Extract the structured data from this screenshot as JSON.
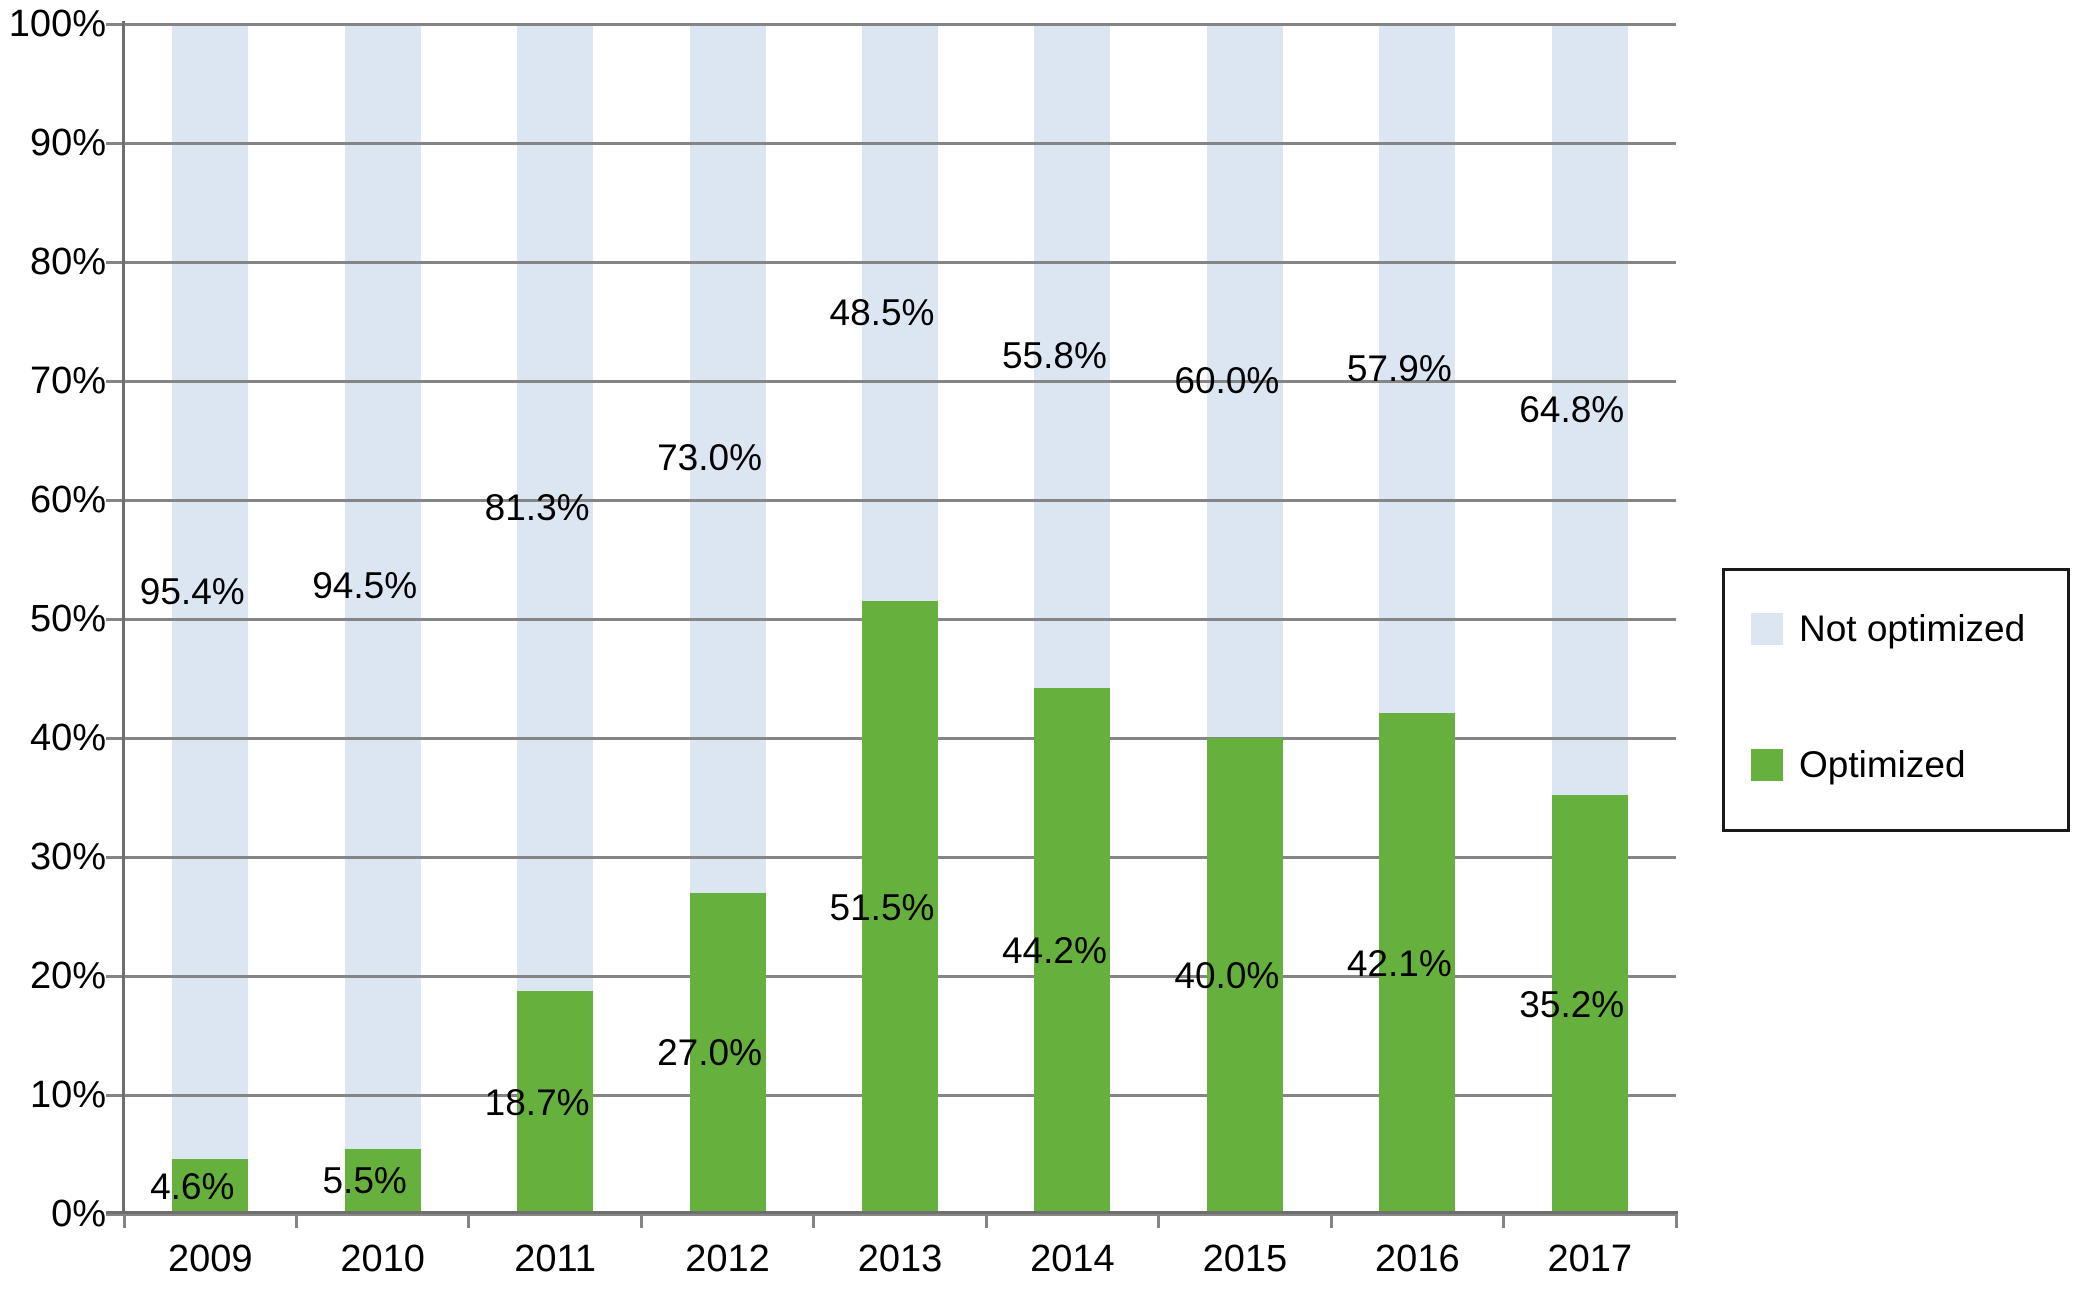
{
  "chart_data": {
    "type": "bar",
    "stacked": true,
    "title": "",
    "xlabel": "",
    "ylabel": "",
    "categories": [
      "2009",
      "2010",
      "2011",
      "2012",
      "2013",
      "2014",
      "2015",
      "2016",
      "2017"
    ],
    "series": [
      {
        "name": "Optimized",
        "color": "#66b13d",
        "values": [
          4.6,
          5.5,
          18.7,
          27.0,
          51.5,
          44.2,
          40.0,
          42.1,
          35.2
        ],
        "labels": [
          "4.6%",
          "5.5%",
          "18.7%",
          "27.0%",
          "51.5%",
          "44.2%",
          "40.0%",
          "42.1%",
          "35.2%"
        ]
      },
      {
        "name": "Not optimized",
        "color": "#dce6f2",
        "values": [
          95.4,
          94.5,
          81.3,
          73.0,
          48.5,
          55.8,
          60.0,
          57.9,
          64.8
        ],
        "labels": [
          "95.4%",
          "94.5%",
          "81.3%",
          "73.0%",
          "48.5%",
          "55.8%",
          "60.0%",
          "57.9%",
          "64.8%"
        ]
      }
    ],
    "y_ticks": [
      "0%",
      "10%",
      "20%",
      "30%",
      "40%",
      "50%",
      "60%",
      "70%",
      "80%",
      "90%",
      "100%"
    ],
    "ylim": [
      0,
      100
    ],
    "grid": true,
    "grid_color": "#858585",
    "axis_color": "#6f6f6f",
    "text_color": "#000000",
    "legend_position": "right"
  },
  "legend": {
    "items": [
      {
        "label": "Not optimized",
        "color": "#dce6f2"
      },
      {
        "label": "Optimized",
        "color": "#66b13d"
      }
    ]
  }
}
